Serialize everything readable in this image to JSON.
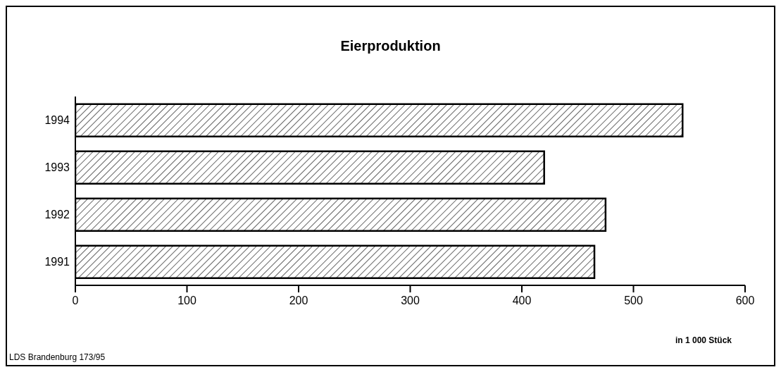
{
  "chart_data": {
    "type": "bar",
    "orientation": "horizontal",
    "title": "Eierproduktion",
    "xlabel": "in 1 000 Stück",
    "categories": [
      "1994",
      "1993",
      "1992",
      "1991"
    ],
    "values": [
      544,
      420,
      475,
      465
    ],
    "color": "#000000",
    "xlim": [
      0,
      600
    ],
    "xticks": [
      0,
      100,
      200,
      300,
      400,
      500,
      600
    ],
    "annotations": [
      "LDS Brandenburg 173/95"
    ]
  }
}
